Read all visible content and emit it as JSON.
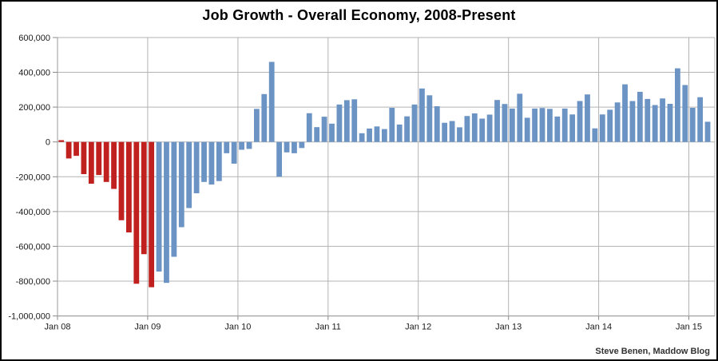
{
  "title": "Job Growth - Overall Economy, 2008-Present",
  "footer": "Steve Benen, Maddow Blog",
  "chart_data": {
    "type": "bar",
    "title": "Job Growth - Overall Economy, 2008-Present",
    "ylabel": "",
    "xlabel": "",
    "y_range": [
      -1000000,
      600000
    ],
    "y_step": 200000,
    "grid": true,
    "legend": "none",
    "y_tick_labels": [
      "600,000",
      "400,000",
      "200,000",
      "0",
      "-200,000",
      "-400,000",
      "-600,000",
      "-800,000",
      "-1,000,000"
    ],
    "x_tick_labels": [
      "Jan 08",
      "Jan 09",
      "Jan 10",
      "Jan 11",
      "Jan 12",
      "Jan 13",
      "Jan 14",
      "Jan 15"
    ],
    "red_bar_count": 13,
    "colors": {
      "bush_red": "#c0211f",
      "obama_blue": "#6b94c4",
      "gridline": "#b3b3b3",
      "axis_text": "#1a1a1a",
      "credit_text": "#333333"
    },
    "categories": [
      "Jan 08",
      "Feb 08",
      "Mar 08",
      "Apr 08",
      "May 08",
      "Jun 08",
      "Jul 08",
      "Aug 08",
      "Sep 08",
      "Oct 08",
      "Nov 08",
      "Dec 08",
      "Jan 09",
      "Feb 09",
      "Mar 09",
      "Apr 09",
      "May 09",
      "Jun 09",
      "Jul 09",
      "Aug 09",
      "Sep 09",
      "Oct 09",
      "Nov 09",
      "Dec 09",
      "Jan 10",
      "Feb 10",
      "Mar 10",
      "Apr 10",
      "May 10",
      "Jun 10",
      "Jul 10",
      "Aug 10",
      "Sep 10",
      "Oct 10",
      "Nov 10",
      "Dec 10",
      "Jan 11",
      "Feb 11",
      "Mar 11",
      "Apr 11",
      "May 11",
      "Jun 11",
      "Jul 11",
      "Aug 11",
      "Sep 11",
      "Oct 11",
      "Nov 11",
      "Dec 11",
      "Jan 12",
      "Feb 12",
      "Mar 12",
      "Apr 12",
      "May 12",
      "Jun 12",
      "Jul 12",
      "Aug 12",
      "Sep 12",
      "Oct 12",
      "Nov 12",
      "Dec 12",
      "Jan 13",
      "Feb 13",
      "Mar 13",
      "Apr 13",
      "May 13",
      "Jun 13",
      "Jul 13",
      "Aug 13",
      "Sep 13",
      "Oct 13",
      "Nov 13",
      "Dec 13",
      "Jan 14",
      "Feb 14",
      "Mar 14",
      "Apr 14",
      "May 14",
      "Jun 14",
      "Jul 14",
      "Aug 14",
      "Sep 14",
      "Oct 14",
      "Nov 14",
      "Dec 14",
      "Jan 15",
      "Feb 15",
      "Mar 15"
    ],
    "values": [
      10000,
      -95000,
      -80000,
      -185000,
      -240000,
      -190000,
      -230000,
      -270000,
      -450000,
      -520000,
      -815000,
      -645000,
      -835000,
      -745000,
      -810000,
      -660000,
      -490000,
      -380000,
      -295000,
      -230000,
      -245000,
      -225000,
      -65000,
      -125000,
      -45000,
      -40000,
      190000,
      275000,
      460000,
      -200000,
      -60000,
      -65000,
      -35000,
      165000,
      85000,
      145000,
      105000,
      215000,
      240000,
      245000,
      50000,
      77000,
      89000,
      74000,
      196000,
      100000,
      147000,
      215000,
      307000,
      268000,
      205000,
      110000,
      120000,
      84000,
      149000,
      164000,
      134000,
      157000,
      241000,
      218000,
      192000,
      277000,
      139000,
      192000,
      195000,
      190000,
      146000,
      192000,
      158000,
      235000,
      273000,
      78000,
      158000,
      185000,
      227000,
      331000,
      235000,
      288000,
      247000,
      212000,
      250000,
      219000,
      423000,
      327000,
      196000,
      257000,
      116000
    ]
  }
}
